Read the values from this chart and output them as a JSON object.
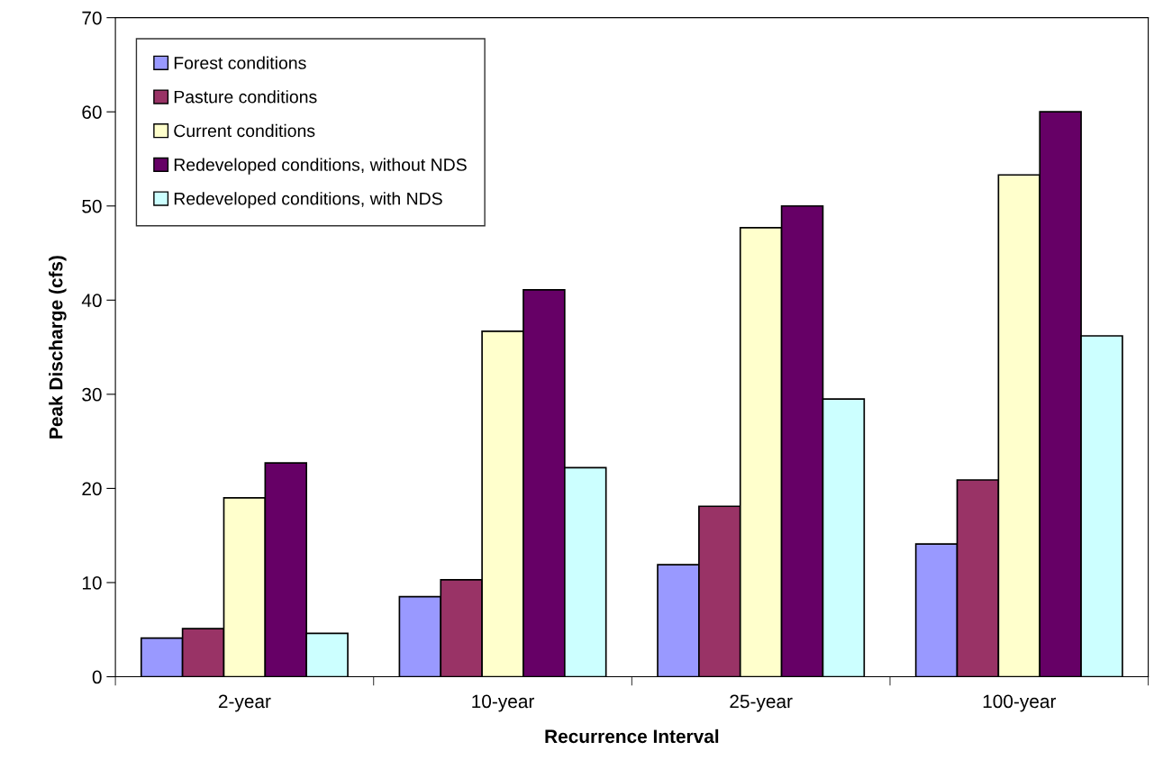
{
  "chart_data": {
    "type": "bar",
    "xlabel": "Recurrence Interval",
    "ylabel": "Peak Discharge (cfs)",
    "categories": [
      "2-year",
      "10-year",
      "25-year",
      "100-year"
    ],
    "series": [
      {
        "name": "Forest conditions",
        "color": "#9999ff",
        "values": [
          4.1,
          8.5,
          11.9,
          14.1
        ]
      },
      {
        "name": "Pasture conditions",
        "color": "#993366",
        "values": [
          5.1,
          10.3,
          18.1,
          20.9
        ]
      },
      {
        "name": "Current conditions",
        "color": "#ffffcc",
        "values": [
          19.0,
          36.7,
          47.7,
          53.3
        ]
      },
      {
        "name": "Redeveloped conditions, without NDS",
        "color": "#660066",
        "values": [
          22.7,
          41.1,
          50.0,
          60.0
        ]
      },
      {
        "name": "Redeveloped conditions, with NDS",
        "color": "#ccffff",
        "values": [
          4.6,
          22.2,
          29.5,
          36.2
        ]
      }
    ],
    "ylim": [
      0,
      70
    ],
    "yticks": [
      0,
      10,
      20,
      30,
      40,
      50,
      60,
      70
    ],
    "grid": false,
    "legend": "top left"
  }
}
